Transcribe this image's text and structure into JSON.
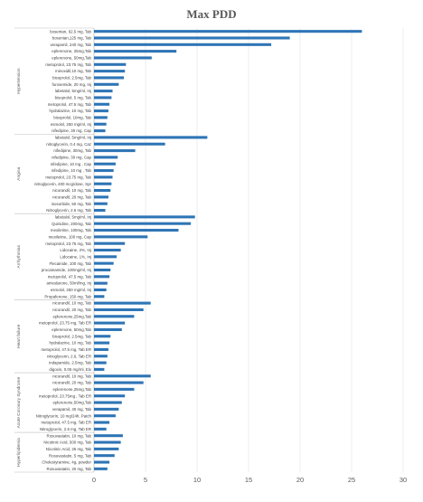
{
  "chart_data": {
    "type": "bar",
    "orientation": "horizontal",
    "title": "Max PDD",
    "xlabel": "",
    "ylabel": "",
    "xlim": [
      0,
      30
    ],
    "xticks": [
      0,
      5,
      10,
      15,
      20,
      25,
      30
    ],
    "grid": true,
    "bar_color": "#2e75b6",
    "groups": [
      {
        "name": "Hypertension",
        "items": [
          {
            "label": "bosentan, 62.5 mg, Tab",
            "value": 26.0
          },
          {
            "label": "bosentan,125 mg, Tab",
            "value": 19.0
          },
          {
            "label": "verapamil, 240 mg, Tab",
            "value": 17.2
          },
          {
            "label": "eplerenone, 25mg,Tab",
            "value": 8.0
          },
          {
            "label": "eplerenone, 50mg,Tab",
            "value": 5.6
          },
          {
            "label": "metoprolol, 23.75 mg, Tab",
            "value": 3.1
          },
          {
            "label": "minoxidil,10 mg, Tab",
            "value": 3.0
          },
          {
            "label": "bisoprolol, 2.5mg, Tab",
            "value": 2.9
          },
          {
            "label": "furosemide, 20 mg, Inj",
            "value": 2.4
          },
          {
            "label": "labetalol, 5mg/ml, Inj",
            "value": 1.8
          },
          {
            "label": "bisoprolol, 5 mg, Tab",
            "value": 1.7
          },
          {
            "label": "metoprolol, 47.5 mg, Tab",
            "value": 1.5
          },
          {
            "label": "hydralazine, 10 mg, Tab",
            "value": 1.4
          },
          {
            "label": "bisoprolol, 10mg, Tab",
            "value": 1.3
          },
          {
            "label": "esmolol, 250 mg/ml, Inj",
            "value": 1.2
          },
          {
            "label": "nifedipine, 30 mg, Cap",
            "value": 1.1
          }
        ]
      },
      {
        "name": "Angina",
        "items": [
          {
            "label": "labetalol, 5mg/ml, Inj",
            "value": 11.0
          },
          {
            "label": "nitroglycerin, 0.4 mg, Caz",
            "value": 6.9
          },
          {
            "label": "nifedipine, 30mg, Tab",
            "value": 4.0
          },
          {
            "label": "nifedipine, 30 mg, Cap",
            "value": 2.3
          },
          {
            "label": "nifedipine, 10 mg , Cap",
            "value": 2.1
          },
          {
            "label": "nifedipine, 10 mg , Tab",
            "value": 1.9
          },
          {
            "label": "metoprolol, 23.75 mg, Tab",
            "value": 1.8
          },
          {
            "label": "nitroglycerin, 400 mcg/dose, Spr",
            "value": 1.7
          },
          {
            "label": "nicorandil, 10 mg, Tab",
            "value": 1.6
          },
          {
            "label": "nicorandil, 20 mg, Tab",
            "value": 1.4
          },
          {
            "label": "isosorbide, 50 mg, Tab",
            "value": 1.3
          },
          {
            "label": "Nitroglycerin, 2.6 mg, Tab",
            "value": 1.1
          }
        ]
      },
      {
        "name": "Arrhythmias",
        "items": [
          {
            "label": "labetalol, 5mg/ml, Inj",
            "value": 9.8
          },
          {
            "label": "Quinidine, 200mg, Tab",
            "value": 9.4
          },
          {
            "label": "mexiletine, 100mg, Tab",
            "value": 8.2
          },
          {
            "label": "mexiletine, 100 mg, Cap",
            "value": 5.2
          },
          {
            "label": "metoprolol, 23.75 mg, Tab",
            "value": 3.0
          },
          {
            "label": "Lidocaine, 2%, Inj",
            "value": 2.6
          },
          {
            "label": "Lidocaine, 1%, Inj",
            "value": 2.2
          },
          {
            "label": "Flecainide, 100 mg, Tab",
            "value": 1.9
          },
          {
            "label": "procainamide, 100mg/ml, Inj",
            "value": 1.6
          },
          {
            "label": "metoprolol, 47.5 mg, Tab",
            "value": 1.5
          },
          {
            "label": "amiodarone, 50ml/mg, Inj",
            "value": 1.3
          },
          {
            "label": "esmolol, 250 mg/ml, Inj",
            "value": 1.2
          },
          {
            "label": "Propafenone, 150 mg, Tab",
            "value": 1.0
          }
        ]
      },
      {
        "name": "Heart failure",
        "items": [
          {
            "label": "nicorandil, 10 mg, Tab",
            "value": 5.5
          },
          {
            "label": "nicorandil, 20 mg, Tab",
            "value": 4.8
          },
          {
            "label": "eplerenone,25mg,Tab",
            "value": 3.9
          },
          {
            "label": "metoprolol, 23.75 mg, Tab ER",
            "value": 3.0
          },
          {
            "label": "eplerenone, 50mg,Tab",
            "value": 2.7
          },
          {
            "label": "bisoprolol, 2.5mg, Tab",
            "value": 1.6
          },
          {
            "label": "hydralazine, 10 mg, Tab",
            "value": 1.5
          },
          {
            "label": "metoprolol, 47.5 mg, Tab ER",
            "value": 1.4
          },
          {
            "label": "nitroglycerin, 2.6, Tab ER",
            "value": 1.3
          },
          {
            "label": "indapamide, 2.5mg, Tab",
            "value": 1.2
          },
          {
            "label": "digoxin, 0.05 mg/ml, Elx",
            "value": 1.0
          }
        ]
      },
      {
        "name": "Acute Coronary Syndrome",
        "items": [
          {
            "label": "nicorandil, 10 mg, Tab",
            "value": 5.5
          },
          {
            "label": "nicorandil, 20 mg, Tab",
            "value": 4.8
          },
          {
            "label": "eplerenone,25mg,Tab",
            "value": 3.9
          },
          {
            "label": "metoprolol, 23.75mg , Tab ER",
            "value": 3.0
          },
          {
            "label": "eplerenone,50mg,Tab",
            "value": 2.7
          },
          {
            "label": "verapamil, 40 mg, Tab",
            "value": 2.4
          },
          {
            "label": "Nitroglycerin, 10 mg/24h, Patch",
            "value": 2.1
          },
          {
            "label": "metoprolol, 47.5 mg, Tab ER",
            "value": 1.5
          },
          {
            "label": "Nitroglycerin, 2.6 mg, Tab ER",
            "value": 1.2
          }
        ]
      },
      {
        "name": "Hyperlipidemia",
        "items": [
          {
            "label": "Rosuvastatin, 10 mg, Tab",
            "value": 2.8
          },
          {
            "label": "Nicotinic Acid, 500 mg, Tab",
            "value": 2.6
          },
          {
            "label": "Nicotinic Acid, 25 mg, Tab",
            "value": 2.4
          },
          {
            "label": "Rosuvastatin, 5 mg, Tab",
            "value": 2.0
          },
          {
            "label": "Cholestyramine, 4g, powder",
            "value": 1.5
          },
          {
            "label": "Rosuvastatin, 20 mg, Tab",
            "value": 1.3
          }
        ]
      }
    ]
  }
}
